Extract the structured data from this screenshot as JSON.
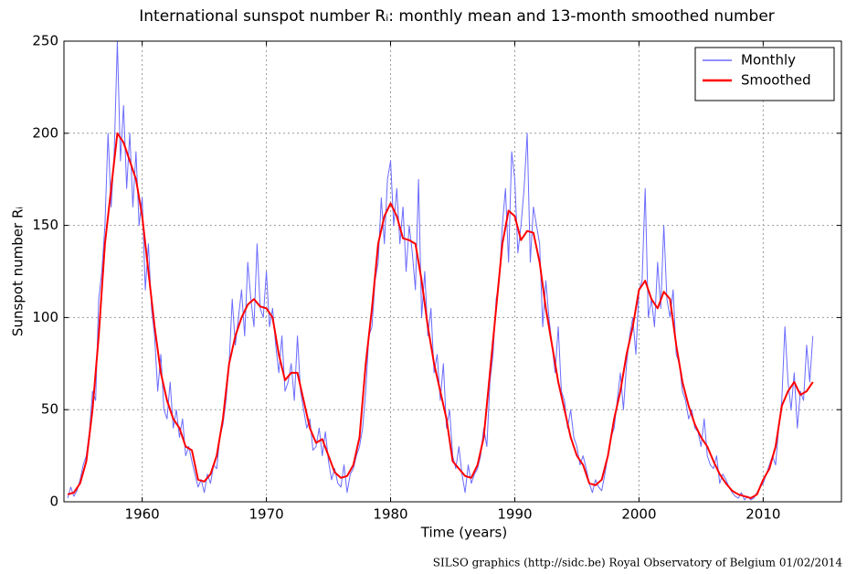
{
  "chart_data": {
    "type": "line",
    "title": "International sunspot number Rᵢ: monthly mean and 13-month smoothed number",
    "x_label": "Time (years)",
    "y_label": "Sunspot number Rᵢ",
    "source": "SILSO graphics (http://sidc.be)  Royal Observatory of Belgium  01/02/2014",
    "xlim": [
      1953.7,
      2016.3
    ],
    "ylim": [
      0,
      250
    ],
    "xticks": [
      1960,
      1970,
      1980,
      1990,
      2000,
      2010
    ],
    "yticks": [
      0,
      50,
      100,
      150,
      200,
      250
    ],
    "grid": true,
    "legend": "upper right",
    "series": [
      {
        "name": "Monthly",
        "color": "#6b6bff",
        "x": [
          1954,
          1954.25,
          1954.5,
          1954.75,
          1955,
          1955.25,
          1955.5,
          1955.75,
          1956,
          1956.25,
          1956.5,
          1956.75,
          1957,
          1957.25,
          1957.5,
          1957.75,
          1958,
          1958.25,
          1958.5,
          1958.75,
          1959,
          1959.25,
          1959.5,
          1959.75,
          1960,
          1960.25,
          1960.5,
          1960.75,
          1961,
          1961.25,
          1961.5,
          1961.75,
          1962,
          1962.25,
          1962.5,
          1962.75,
          1963,
          1963.25,
          1963.5,
          1963.75,
          1964,
          1964.25,
          1964.5,
          1964.75,
          1965,
          1965.25,
          1965.5,
          1965.75,
          1966,
          1966.25,
          1966.5,
          1966.75,
          1967,
          1967.25,
          1967.5,
          1967.75,
          1968,
          1968.25,
          1968.5,
          1968.75,
          1969,
          1969.25,
          1969.5,
          1969.75,
          1970,
          1970.25,
          1970.5,
          1970.75,
          1971,
          1971.25,
          1971.5,
          1971.75,
          1972,
          1972.25,
          1972.5,
          1972.75,
          1973,
          1973.25,
          1973.5,
          1973.75,
          1974,
          1974.25,
          1974.5,
          1974.75,
          1975,
          1975.25,
          1975.5,
          1975.75,
          1976,
          1976.25,
          1976.5,
          1976.75,
          1977,
          1977.25,
          1977.5,
          1977.75,
          1978,
          1978.25,
          1978.5,
          1978.75,
          1979,
          1979.25,
          1979.5,
          1979.75,
          1980,
          1980.25,
          1980.5,
          1980.75,
          1981,
          1981.25,
          1981.5,
          1981.75,
          1982,
          1982.25,
          1982.5,
          1982.75,
          1983,
          1983.25,
          1983.5,
          1983.75,
          1984,
          1984.25,
          1984.5,
          1984.75,
          1985,
          1985.25,
          1985.5,
          1985.75,
          1986,
          1986.25,
          1986.5,
          1986.75,
          1987,
          1987.25,
          1987.5,
          1987.75,
          1988,
          1988.25,
          1988.5,
          1988.75,
          1989,
          1989.25,
          1989.5,
          1989.75,
          1990,
          1990.25,
          1990.5,
          1990.75,
          1991,
          1991.25,
          1991.5,
          1991.75,
          1992,
          1992.25,
          1992.5,
          1992.75,
          1993,
          1993.25,
          1993.5,
          1993.75,
          1994,
          1994.25,
          1994.5,
          1994.75,
          1995,
          1995.25,
          1995.5,
          1995.75,
          1996,
          1996.25,
          1996.5,
          1996.75,
          1997,
          1997.25,
          1997.5,
          1997.75,
          1998,
          1998.25,
          1998.5,
          1998.75,
          1999,
          1999.25,
          1999.5,
          1999.75,
          2000,
          2000.25,
          2000.5,
          2000.75,
          2001,
          2001.25,
          2001.5,
          2001.75,
          2002,
          2002.25,
          2002.5,
          2002.75,
          2003,
          2003.25,
          2003.5,
          2003.75,
          2004,
          2004.25,
          2004.5,
          2004.75,
          2005,
          2005.25,
          2005.5,
          2005.75,
          2006,
          2006.25,
          2006.5,
          2006.75,
          2007,
          2007.25,
          2007.5,
          2007.75,
          2008,
          2008.25,
          2008.5,
          2008.75,
          2009,
          2009.25,
          2009.5,
          2009.75,
          2010,
          2010.25,
          2010.5,
          2010.75,
          2011,
          2011.25,
          2011.5,
          2011.75,
          2012,
          2012.25,
          2012.5,
          2012.75,
          2013,
          2013.25,
          2013.5,
          2013.75,
          2014
        ],
        "values": [
          2,
          8,
          3,
          6,
          12,
          20,
          25,
          38,
          60,
          55,
          110,
          125,
          150,
          200,
          160,
          190,
          250,
          185,
          215,
          170,
          200,
          160,
          190,
          150,
          165,
          115,
          140,
          105,
          90,
          60,
          80,
          50,
          45,
          65,
          40,
          50,
          35,
          45,
          25,
          30,
          22,
          15,
          8,
          12,
          5,
          15,
          10,
          20,
          18,
          35,
          42,
          55,
          75,
          110,
          85,
          100,
          115,
          90,
          130,
          110,
          95,
          140,
          105,
          100,
          125,
          95,
          105,
          85,
          70,
          90,
          60,
          65,
          75,
          55,
          90,
          60,
          50,
          40,
          45,
          28,
          30,
          40,
          25,
          38,
          22,
          12,
          18,
          10,
          8,
          20,
          5,
          15,
          18,
          25,
          30,
          40,
          60,
          90,
          95,
          120,
          130,
          165,
          140,
          175,
          185,
          150,
          170,
          140,
          160,
          125,
          150,
          135,
          115,
          175,
          100,
          125,
          90,
          105,
          70,
          80,
          55,
          75,
          40,
          50,
          25,
          18,
          30,
          15,
          5,
          20,
          10,
          15,
          18,
          25,
          40,
          30,
          65,
          80,
          110,
          120,
          150,
          170,
          130,
          190,
          175,
          135,
          150,
          170,
          200,
          130,
          160,
          150,
          140,
          95,
          120,
          100,
          85,
          70,
          95,
          60,
          55,
          40,
          50,
          35,
          30,
          20,
          25,
          18,
          10,
          5,
          12,
          8,
          6,
          15,
          25,
          35,
          40,
          55,
          70,
          50,
          75,
          90,
          100,
          80,
          115,
          120,
          170,
          100,
          110,
          95,
          130,
          105,
          150,
          110,
          100,
          115,
          80,
          75,
          60,
          55,
          45,
          50,
          40,
          38,
          30,
          45,
          25,
          20,
          18,
          25,
          10,
          15,
          12,
          8,
          5,
          3,
          2,
          5,
          1,
          3,
          1,
          2,
          5,
          8,
          10,
          15,
          20,
          25,
          20,
          40,
          55,
          95,
          65,
          50,
          70,
          40,
          60,
          55,
          85,
          65,
          90
        ]
      },
      {
        "name": "Smoothed",
        "color": "#ff0000",
        "x": [
          1954,
          1954.5,
          1955,
          1955.5,
          1956,
          1956.5,
          1957,
          1957.5,
          1958,
          1958.5,
          1959,
          1959.5,
          1960,
          1960.5,
          1961,
          1961.5,
          1962,
          1962.5,
          1963,
          1963.5,
          1964,
          1964.5,
          1965,
          1965.5,
          1966,
          1966.5,
          1967,
          1967.5,
          1968,
          1968.5,
          1969,
          1969.5,
          1970,
          1970.5,
          1971,
          1971.5,
          1972,
          1972.5,
          1973,
          1973.5,
          1974,
          1974.5,
          1975,
          1975.5,
          1976,
          1976.5,
          1977,
          1977.5,
          1978,
          1978.5,
          1979,
          1979.5,
          1980,
          1980.5,
          1981,
          1981.5,
          1982,
          1982.5,
          1983,
          1983.5,
          1984,
          1984.5,
          1985,
          1985.5,
          1986,
          1986.5,
          1987,
          1987.5,
          1988,
          1988.5,
          1989,
          1989.5,
          1990,
          1990.5,
          1991,
          1991.5,
          1992,
          1992.5,
          1993,
          1993.5,
          1994,
          1994.5,
          1995,
          1995.5,
          1996,
          1996.5,
          1997,
          1997.5,
          1998,
          1998.5,
          1999,
          1999.5,
          2000,
          2000.5,
          2001,
          2001.5,
          2002,
          2002.5,
          2003,
          2003.5,
          2004,
          2004.5,
          2005,
          2005.5,
          2006,
          2006.5,
          2007,
          2007.5,
          2008,
          2008.5,
          2009,
          2009.5,
          2010,
          2010.5,
          2011,
          2011.5,
          2012,
          2012.5,
          2013,
          2013.5,
          2014
        ],
        "values": [
          4,
          5,
          10,
          22,
          50,
          90,
          140,
          170,
          200,
          195,
          185,
          175,
          155,
          125,
          95,
          70,
          55,
          45,
          40,
          30,
          28,
          12,
          11,
          15,
          25,
          45,
          75,
          90,
          100,
          107,
          110,
          106,
          105,
          100,
          80,
          66,
          70,
          70,
          55,
          40,
          32,
          34,
          25,
          16,
          13,
          14,
          20,
          35,
          75,
          105,
          140,
          155,
          162,
          155,
          143,
          142,
          140,
          120,
          95,
          75,
          60,
          45,
          22,
          18,
          14,
          13,
          20,
          35,
          70,
          105,
          140,
          158,
          155,
          142,
          147,
          146,
          130,
          105,
          85,
          65,
          50,
          35,
          25,
          20,
          10,
          9,
          12,
          25,
          45,
          60,
          80,
          95,
          115,
          120,
          110,
          105,
          114,
          110,
          85,
          65,
          52,
          42,
          35,
          30,
          22,
          15,
          10,
          6,
          4,
          3,
          2,
          4,
          12,
          18,
          30,
          52,
          60,
          65,
          58,
          60,
          65
        ]
      }
    ]
  }
}
